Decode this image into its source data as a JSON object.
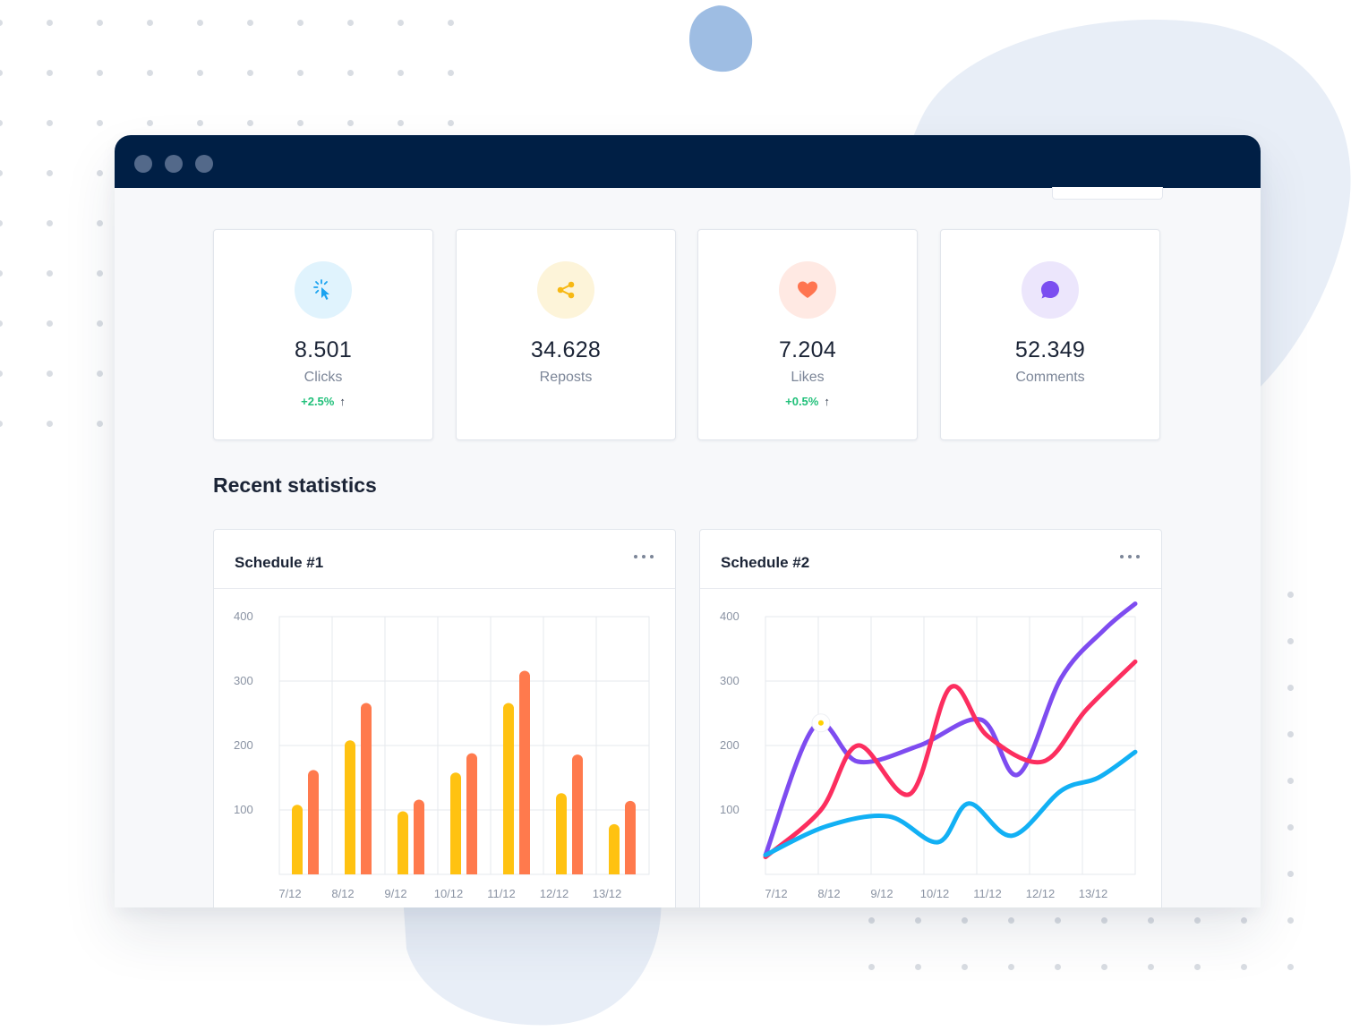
{
  "window": {
    "controls": [
      "close",
      "minimize",
      "maximize"
    ]
  },
  "stats": [
    {
      "value": "8.501",
      "label": "Clicks",
      "change": "+2.5%",
      "icon": "cursor-click-icon",
      "icon_color": "#1aa3f0",
      "icon_bg": "#e0f3fd"
    },
    {
      "value": "34.628",
      "label": "Reposts",
      "change": "",
      "icon": "share-icon",
      "icon_color": "#f7b813",
      "icon_bg": "#fdf4d9"
    },
    {
      "value": "7.204",
      "label": "Likes",
      "change": "+0.5%",
      "icon": "heart-icon",
      "icon_color": "#ff7550",
      "icon_bg": "#ffe9e3"
    },
    {
      "value": "52.349",
      "label": "Comments",
      "change": "",
      "icon": "chat-bubble-icon",
      "icon_color": "#7b4ef0",
      "icon_bg": "#ece6fc"
    }
  ],
  "section_title": "Recent statistics",
  "colors": {
    "accent_yellow": "#ffc211",
    "accent_orange": "#ff7a4d",
    "purple": "#7e4cf0",
    "red": "#fc2e5f",
    "blue": "#12b0f4",
    "positive": "#21c07a",
    "titlebar": "#001f45"
  },
  "chart_data": [
    {
      "type": "bar",
      "title": "Schedule #1",
      "categories": [
        "7/12",
        "8/12",
        "9/12",
        "10/12",
        "11/12",
        "12/12",
        "13/12"
      ],
      "yticks": [
        100,
        200,
        300,
        400
      ],
      "ylim": [
        0,
        400
      ],
      "grid": true,
      "series": [
        {
          "values": [
            108,
            208,
            98,
            158,
            266,
            126,
            78
          ],
          "color": "#ffc211"
        },
        {
          "values": [
            162,
            266,
            116,
            188,
            316,
            186,
            114
          ],
          "color": "#ff7a4d"
        }
      ]
    },
    {
      "type": "line",
      "title": "Schedule #2",
      "categories": [
        "7/12",
        "8/12",
        "9/12",
        "10/12",
        "11/12",
        "12/12",
        "13/12"
      ],
      "yticks": [
        100,
        200,
        300,
        400
      ],
      "ylim": [
        0,
        400
      ],
      "grid": true,
      "series": [
        {
          "color": "#7e4cf0",
          "points": [
            [
              0,
              30
            ],
            [
              0.8,
              230
            ],
            [
              1.5,
              175
            ],
            [
              2.5,
              200
            ],
            [
              3.5,
              240
            ],
            [
              4.1,
              155
            ],
            [
              4.8,
              305
            ],
            [
              5.5,
              380
            ],
            [
              6.0,
              420
            ]
          ]
        },
        {
          "color": "#fc2e5f",
          "points": [
            [
              0,
              27
            ],
            [
              0.9,
              100
            ],
            [
              1.5,
              200
            ],
            [
              2.35,
              125
            ],
            [
              3.0,
              290
            ],
            [
              3.6,
              215
            ],
            [
              4.5,
              175
            ],
            [
              5.2,
              255
            ],
            [
              6.0,
              330
            ]
          ]
        },
        {
          "color": "#12b0f4",
          "points": [
            [
              0,
              30
            ],
            [
              1.0,
              75
            ],
            [
              2.0,
              90
            ],
            [
              2.8,
              50
            ],
            [
              3.3,
              110
            ],
            [
              4.0,
              60
            ],
            [
              4.8,
              130
            ],
            [
              5.4,
              150
            ],
            [
              6.0,
              190
            ]
          ]
        }
      ],
      "highlight_point": [
        0.9,
        235
      ]
    }
  ]
}
